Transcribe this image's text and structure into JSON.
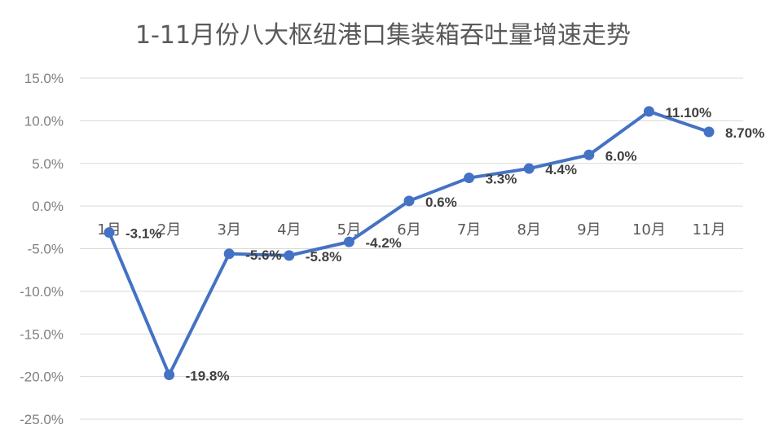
{
  "chart_data": {
    "type": "line",
    "title": "1-11月份八大枢纽港口集装箱吞吐量增速走势",
    "categories": [
      "1月",
      "2月",
      "3月",
      "4月",
      "5月",
      "6月",
      "7月",
      "8月",
      "9月",
      "10月",
      "11月"
    ],
    "series": [
      {
        "values": [
          -3.1,
          -19.8,
          -5.6,
          -5.8,
          -4.2,
          0.6,
          3.3,
          4.4,
          6.0,
          11.1,
          8.7
        ],
        "labels": [
          "-3.1%",
          "-19.8%",
          "-5.6%",
          "-5.8%",
          "-4.2%",
          "0.6%",
          "3.3%",
          "4.4%",
          "6.0%",
          "11.10%",
          "8.70%"
        ]
      }
    ],
    "yticks": [
      "15.0%",
      "10.0%",
      "5.0%",
      "0.0%",
      "-5.0%",
      "-10.0%",
      "-15.0%",
      "-20.0%",
      "-25.0%"
    ],
    "ytick_values": [
      15,
      10,
      5,
      0,
      -5,
      -10,
      -15,
      -20,
      -25
    ],
    "ylim": [
      -25,
      15
    ],
    "grid": true,
    "colors": {
      "line": "#4472c4",
      "grid": "#d9d9d9",
      "text": "#595959"
    }
  }
}
